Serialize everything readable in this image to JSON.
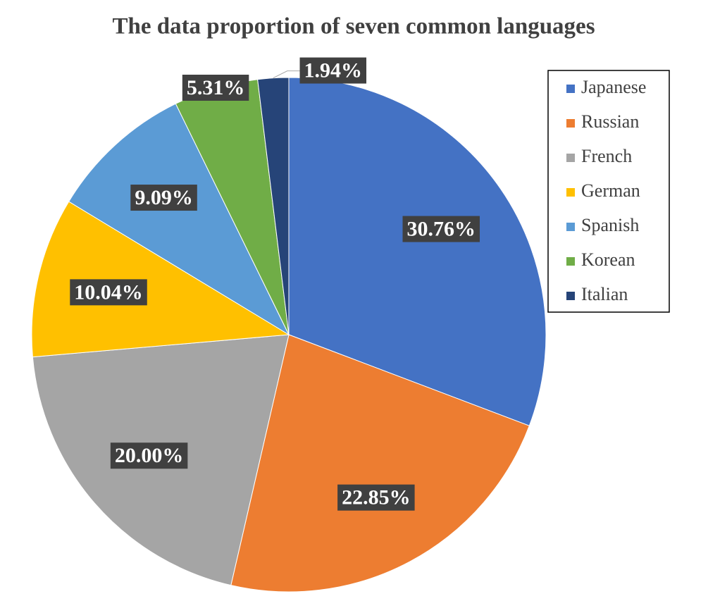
{
  "chart_data": {
    "type": "pie",
    "title": "The data proportion of seven common languages",
    "categories": [
      "Japanese",
      "Russian",
      "French",
      "German",
      "Spanish",
      "Korean",
      "Italian"
    ],
    "values": [
      30.76,
      22.85,
      20.0,
      10.04,
      9.09,
      5.31,
      1.94
    ],
    "value_labels": [
      "30.76%",
      "22.85%",
      "20.00%",
      "10.04%",
      "9.09%",
      "5.31%",
      "1.94%"
    ],
    "colors": [
      "#4472c4",
      "#ed7d31",
      "#a5a5a5",
      "#ffc000",
      "#5b9bd5",
      "#70ad47",
      "#264478"
    ],
    "legend": "right"
  }
}
